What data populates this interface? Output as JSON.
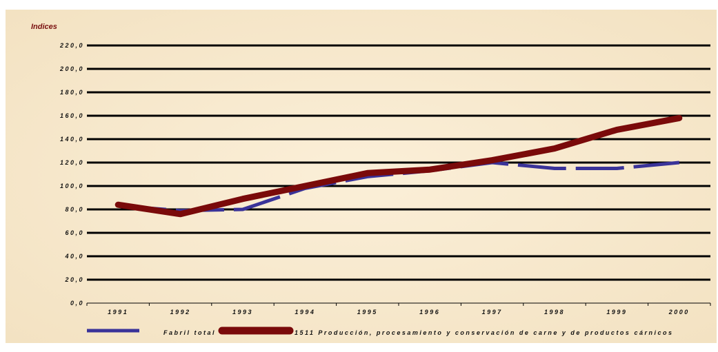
{
  "chart_data": {
    "type": "line",
    "ylabel": "Indices",
    "xlabel": "",
    "title": "",
    "ylim": [
      0,
      220
    ],
    "yticks": [
      "0,0",
      "20,0",
      "40,0",
      "60,0",
      "80,0",
      "100,0",
      "120,0",
      "140,0",
      "160,0",
      "180,0",
      "200,0",
      "220,0"
    ],
    "categories": [
      "1991",
      "1992",
      "1993",
      "1994",
      "1995",
      "1996",
      "1997",
      "1998",
      "1999",
      "2000"
    ],
    "grid": true,
    "legend_position": "bottom",
    "series": [
      {
        "name": "Fabril total",
        "values": [
          83,
          79,
          80,
          98,
          108,
          113,
          120,
          115,
          115,
          120
        ],
        "color": "#3a3399",
        "style": "dashed"
      },
      {
        "name": "1511 Producción, procesamiento y conservación de carne y de productos cárnicos",
        "values": [
          84,
          76,
          89,
          100,
          111,
          114,
          122,
          132,
          148,
          158
        ],
        "color": "#7a0a0a",
        "style": "solid"
      }
    ]
  },
  "colors": {
    "background": "#f7e9cf",
    "grid": "#000000"
  }
}
